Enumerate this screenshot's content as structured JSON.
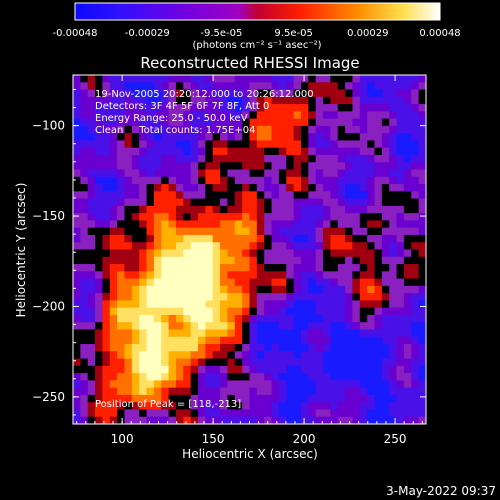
{
  "chart_data": {
    "type": "heatmap",
    "title": "Reconstructed RHESSI Image",
    "xlabel": "Heliocentric X (arcsec)",
    "ylabel": "Heliocentric Y (arcsec)",
    "xlim": [
      73,
      267
    ],
    "ylim": [
      -265,
      -72
    ],
    "xticks": [
      100,
      150,
      200,
      250
    ],
    "yticks": [
      -100,
      -150,
      -200,
      -250
    ],
    "colorbar": {
      "range": [
        -0.00048,
        0.00048
      ],
      "ticks": [
        "-0.00048",
        "-0.00029",
        "-9.5e-05",
        "9.5e-05",
        "0.00029",
        "0.00048"
      ],
      "tick_values": [
        -0.00048,
        -0.00029,
        -9.5e-05,
        9.5e-05,
        0.00029,
        0.00048
      ],
      "unit_label": "(photons cm⁻² s⁻¹ asec⁻²)",
      "colormap": [
        "#1010e0",
        "#5b00d4",
        "#8a1cd4",
        "#c00030",
        "#ff2000",
        "#ff8800",
        "#ffe040",
        "#ffffff"
      ]
    },
    "annotations": [
      "19-Nov-2005 20:20:12.000 to 20:26:12.000",
      "Detectors: 3F 4F 5F 6F 7F 8F, Att 0",
      "Energy Range: 25.0 - 50.0 keV",
      "Clean     Total counts: 1.75E+04"
    ],
    "peak_label": "Position of Peak = [118,-213]",
    "peak": [
      118,
      -213
    ]
  },
  "footer": {
    "date": "3-May-2022 09:37"
  }
}
